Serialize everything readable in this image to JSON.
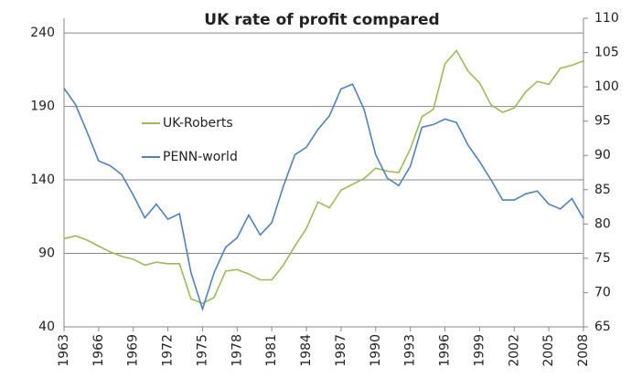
{
  "chart_data": {
    "type": "line",
    "title": "UK rate of profit compared",
    "x": [
      1963,
      1964,
      1965,
      1966,
      1967,
      1968,
      1969,
      1970,
      1971,
      1972,
      1973,
      1974,
      1975,
      1976,
      1977,
      1978,
      1979,
      1980,
      1981,
      1982,
      1983,
      1984,
      1985,
      1986,
      1987,
      1988,
      1989,
      1990,
      1991,
      1992,
      1993,
      1994,
      1995,
      1996,
      1997,
      1998,
      1999,
      2000,
      2001,
      2002,
      2003,
      2004,
      2005,
      2006,
      2007,
      2008
    ],
    "xlim": [
      1963,
      2008
    ],
    "xticks": [
      1963,
      1966,
      1969,
      1972,
      1975,
      1978,
      1981,
      1984,
      1987,
      1990,
      1993,
      1996,
      1999,
      2002,
      2005,
      2008
    ],
    "ylim": [
      40,
      250
    ],
    "yticks": [
      40,
      90,
      140,
      190,
      240
    ],
    "y2lim": [
      65,
      110
    ],
    "y2ticks": [
      65,
      70,
      75,
      80,
      85,
      90,
      95,
      100,
      105,
      110
    ],
    "grid": true,
    "legend": "upper left",
    "series": [
      {
        "name": "UK-Roberts",
        "color": "#9bbb59",
        "values": [
          100,
          102,
          99,
          95,
          91,
          88,
          86,
          82,
          84,
          83,
          83,
          59,
          56,
          60,
          78,
          79,
          76,
          72,
          72,
          82,
          95,
          107,
          125,
          121,
          133,
          137,
          141,
          148,
          146,
          145,
          161,
          183,
          188,
          219,
          228,
          214,
          206,
          191,
          186,
          189,
          200,
          207,
          205,
          216,
          218,
          221
        ]
      },
      {
        "name": "PENN-world",
        "color": "#4f81bd",
        "axis": "y2",
        "values": [
          99.8,
          97.4,
          93.4,
          89.2,
          88.5,
          87.2,
          84.2,
          80.9,
          82.9,
          80.7,
          81.5,
          72.9,
          67.6,
          72.9,
          76.6,
          78,
          81.3,
          78.4,
          80.2,
          85.5,
          90.1,
          91.2,
          93.8,
          95.8,
          99.7,
          100.4,
          96.7,
          90.1,
          86.7,
          85.6,
          88.4,
          94.1,
          94.5,
          95.3,
          94.8,
          91.5,
          89.1,
          86.4,
          83.5,
          83.5,
          84.4,
          84.8,
          82.9,
          82.2,
          83.7,
          80.8
        ]
      }
    ]
  }
}
